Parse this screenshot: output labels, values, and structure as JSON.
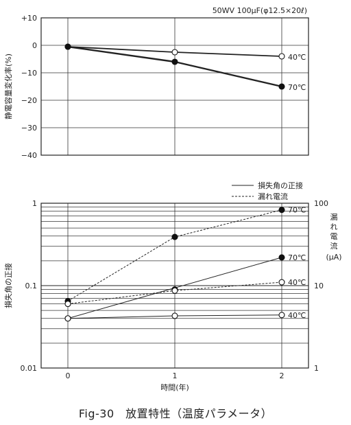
{
  "caption": "Fig-30　放置特性（温度パラメータ）",
  "chart_data": [
    {
      "type": "line",
      "title": "50WV 100μF(φ12.5×20ℓ)",
      "ylabel": "静電容量変化率(%)",
      "xlabel": "",
      "x_ticks": [
        0,
        1,
        2
      ],
      "y_ticks": [
        "+10",
        "0",
        "−10",
        "−20",
        "−30",
        "−40"
      ],
      "ylim": [
        -40,
        10
      ],
      "xlim": [
        -0.25,
        2.25
      ],
      "grid": true,
      "series": [
        {
          "name": "40℃",
          "marker": "open",
          "x": [
            0,
            1,
            2
          ],
          "values": [
            -0.5,
            -2.5,
            -4
          ]
        },
        {
          "name": "70℃",
          "marker": "filled",
          "x": [
            0,
            1,
            2
          ],
          "values": [
            -0.5,
            -6,
            -15
          ]
        }
      ]
    },
    {
      "type": "line",
      "xlabel": "時間(年)",
      "ylabel": "損失角の正接",
      "y2label_chars": [
        "漏",
        "れ",
        "電",
        "流"
      ],
      "y2unit": "(μA)",
      "x_ticks": [
        0,
        1,
        2
      ],
      "y_ticks": [
        "1",
        "0.1",
        "0.01"
      ],
      "y2_ticks": [
        "100",
        "10",
        "1"
      ],
      "y_scale": "log",
      "ylim": [
        0.01,
        1
      ],
      "y2lim": [
        1,
        100
      ],
      "xlim": [
        -0.25,
        2.25
      ],
      "legend": [
        {
          "label": "損失角の正接",
          "style": "solid"
        },
        {
          "label": "漏れ電流",
          "style": "dashed"
        }
      ],
      "series": [
        {
          "name": "70℃",
          "measure": "損失角の正接",
          "style": "solid",
          "marker": "filled",
          "axis": "left",
          "x": [
            0,
            2
          ],
          "values": [
            0.04,
            0.22
          ],
          "extra_points": [
            {
              "x": 1,
              "value": 0.09
            }
          ]
        },
        {
          "name": "40℃",
          "measure": "損失角の正接",
          "style": "solid",
          "marker": "open",
          "axis": "left",
          "x": [
            0,
            1,
            2
          ],
          "values": [
            0.04,
            0.043,
            0.044
          ]
        },
        {
          "name": "70℃",
          "measure": "漏れ電流",
          "style": "dashed",
          "marker": "filled",
          "axis": "right",
          "x": [
            0,
            1,
            2
          ],
          "values": [
            6.5,
            39,
            83
          ]
        },
        {
          "name": "40℃",
          "measure": "漏れ電流",
          "style": "dashed",
          "marker": "open",
          "axis": "right",
          "x": [
            0,
            1,
            2
          ],
          "values": [
            6,
            8.7,
            11
          ]
        }
      ]
    }
  ]
}
